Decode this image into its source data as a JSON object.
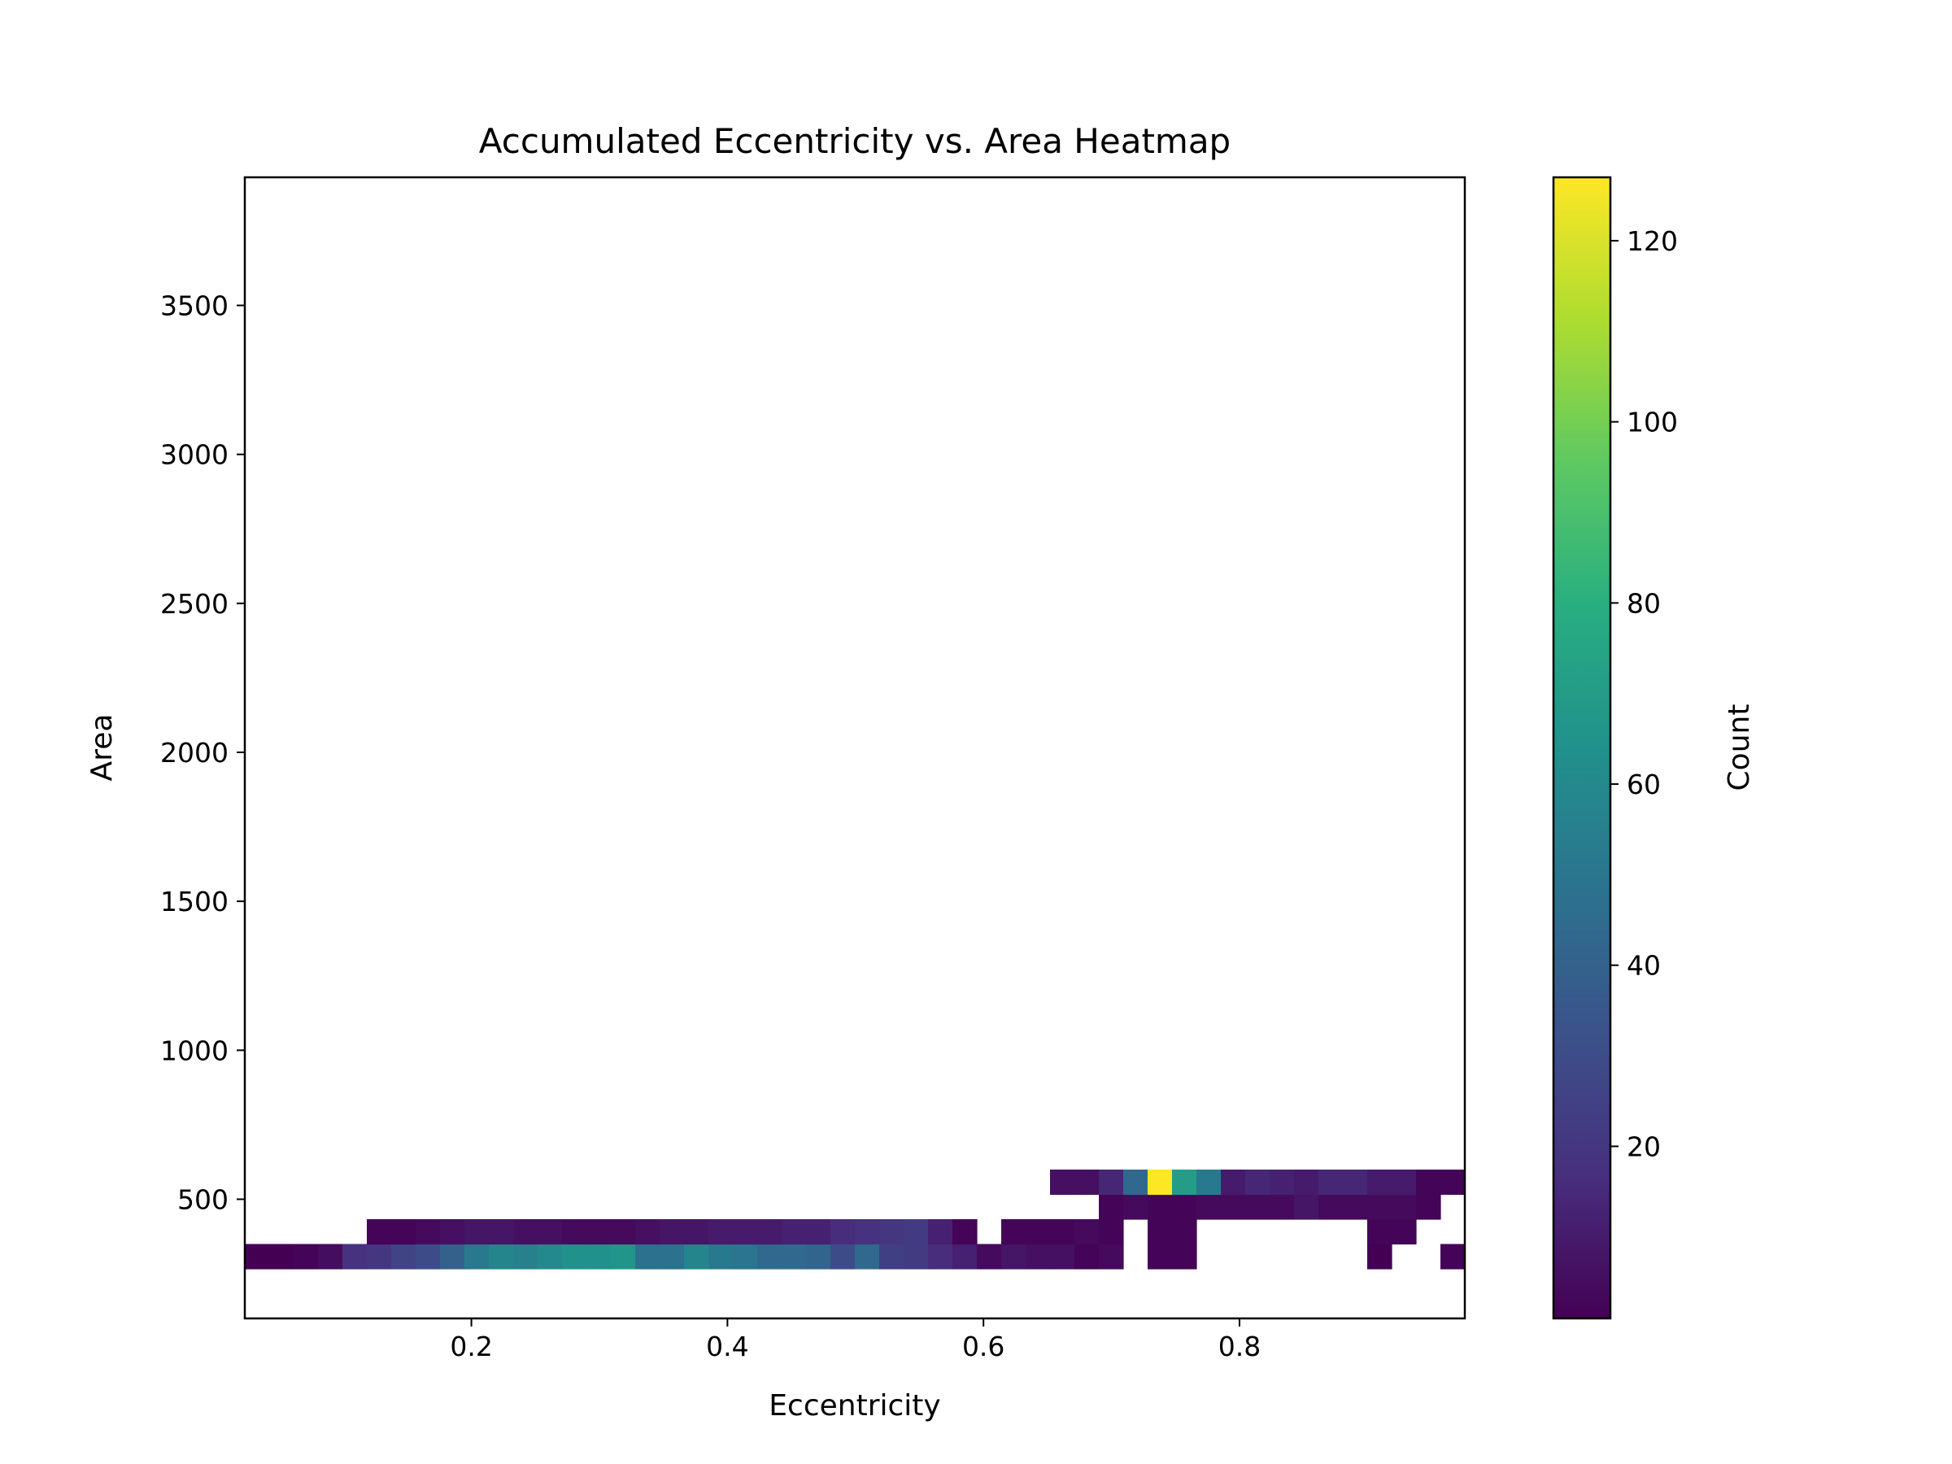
{
  "chart_data": {
    "type": "heatmap",
    "title": "Accumulated Eccentricity vs. Area Heatmap",
    "xlabel": "Eccentricity",
    "ylabel": "Area",
    "colorbar_label": "Count",
    "colormap": "viridis",
    "xlim": [
      0.023,
      0.976
    ],
    "ylim": [
      100,
      3930
    ],
    "x_bins": 50,
    "y_bins": 46,
    "clim": [
      1,
      127
    ],
    "x_ticks": [
      "0.2",
      "0.4",
      "0.6",
      "0.8"
    ],
    "y_ticks": [
      "500",
      "1000",
      "1500",
      "2000",
      "2500",
      "3000",
      "3500"
    ],
    "colorbar_ticks": [
      "20",
      "40",
      "60",
      "80",
      "100",
      "120"
    ],
    "grid": false,
    "cells": [
      {
        "col": 0,
        "row": 2,
        "v": 1
      },
      {
        "col": 1,
        "row": 2,
        "v": 1
      },
      {
        "col": 2,
        "row": 2,
        "v": 2
      },
      {
        "col": 3,
        "row": 2,
        "v": 5
      },
      {
        "col": 4,
        "row": 2,
        "v": 18
      },
      {
        "col": 5,
        "row": 2,
        "v": 20
      },
      {
        "col": 6,
        "row": 2,
        "v": 26
      },
      {
        "col": 7,
        "row": 2,
        "v": 30
      },
      {
        "col": 8,
        "row": 2,
        "v": 40
      },
      {
        "col": 9,
        "row": 2,
        "v": 52
      },
      {
        "col": 10,
        "row": 2,
        "v": 58
      },
      {
        "col": 11,
        "row": 2,
        "v": 56
      },
      {
        "col": 12,
        "row": 2,
        "v": 60
      },
      {
        "col": 13,
        "row": 2,
        "v": 64
      },
      {
        "col": 14,
        "row": 2,
        "v": 64
      },
      {
        "col": 15,
        "row": 2,
        "v": 66
      },
      {
        "col": 16,
        "row": 2,
        "v": 48
      },
      {
        "col": 17,
        "row": 2,
        "v": 48
      },
      {
        "col": 18,
        "row": 2,
        "v": 58
      },
      {
        "col": 19,
        "row": 2,
        "v": 52
      },
      {
        "col": 20,
        "row": 2,
        "v": 50
      },
      {
        "col": 21,
        "row": 2,
        "v": 44
      },
      {
        "col": 22,
        "row": 2,
        "v": 44
      },
      {
        "col": 23,
        "row": 2,
        "v": 42
      },
      {
        "col": 24,
        "row": 2,
        "v": 30
      },
      {
        "col": 25,
        "row": 2,
        "v": 44
      },
      {
        "col": 26,
        "row": 2,
        "v": 24
      },
      {
        "col": 27,
        "row": 2,
        "v": 22
      },
      {
        "col": 28,
        "row": 2,
        "v": 16
      },
      {
        "col": 29,
        "row": 2,
        "v": 12
      },
      {
        "col": 30,
        "row": 2,
        "v": 4
      },
      {
        "col": 31,
        "row": 2,
        "v": 8
      },
      {
        "col": 32,
        "row": 2,
        "v": 6
      },
      {
        "col": 33,
        "row": 2,
        "v": 6
      },
      {
        "col": 34,
        "row": 2,
        "v": 2
      },
      {
        "col": 35,
        "row": 2,
        "v": 4
      },
      {
        "col": 37,
        "row": 2,
        "v": 2
      },
      {
        "col": 38,
        "row": 2,
        "v": 2
      },
      {
        "col": 46,
        "row": 2,
        "v": 1
      },
      {
        "col": 49,
        "row": 2,
        "v": 2
      },
      {
        "col": 5,
        "row": 3,
        "v": 2
      },
      {
        "col": 6,
        "row": 3,
        "v": 2
      },
      {
        "col": 7,
        "row": 3,
        "v": 4
      },
      {
        "col": 8,
        "row": 3,
        "v": 6
      },
      {
        "col": 9,
        "row": 3,
        "v": 8
      },
      {
        "col": 10,
        "row": 3,
        "v": 8
      },
      {
        "col": 11,
        "row": 3,
        "v": 6
      },
      {
        "col": 12,
        "row": 3,
        "v": 6
      },
      {
        "col": 13,
        "row": 3,
        "v": 4
      },
      {
        "col": 14,
        "row": 3,
        "v": 4
      },
      {
        "col": 15,
        "row": 3,
        "v": 4
      },
      {
        "col": 16,
        "row": 3,
        "v": 6
      },
      {
        "col": 17,
        "row": 3,
        "v": 8
      },
      {
        "col": 18,
        "row": 3,
        "v": 8
      },
      {
        "col": 19,
        "row": 3,
        "v": 10
      },
      {
        "col": 20,
        "row": 3,
        "v": 10
      },
      {
        "col": 21,
        "row": 3,
        "v": 10
      },
      {
        "col": 22,
        "row": 3,
        "v": 12
      },
      {
        "col": 23,
        "row": 3,
        "v": 12
      },
      {
        "col": 24,
        "row": 3,
        "v": 16
      },
      {
        "col": 25,
        "row": 3,
        "v": 18
      },
      {
        "col": 26,
        "row": 3,
        "v": 20
      },
      {
        "col": 27,
        "row": 3,
        "v": 22
      },
      {
        "col": 28,
        "row": 3,
        "v": 12
      },
      {
        "col": 29,
        "row": 3,
        "v": 2
      },
      {
        "col": 31,
        "row": 3,
        "v": 2
      },
      {
        "col": 32,
        "row": 3,
        "v": 2
      },
      {
        "col": 33,
        "row": 3,
        "v": 2
      },
      {
        "col": 34,
        "row": 3,
        "v": 4
      },
      {
        "col": 35,
        "row": 3,
        "v": 2
      },
      {
        "col": 37,
        "row": 3,
        "v": 2
      },
      {
        "col": 38,
        "row": 3,
        "v": 2
      },
      {
        "col": 46,
        "row": 3,
        "v": 2
      },
      {
        "col": 47,
        "row": 3,
        "v": 2
      },
      {
        "col": 35,
        "row": 4,
        "v": 2
      },
      {
        "col": 36,
        "row": 4,
        "v": 4
      },
      {
        "col": 37,
        "row": 4,
        "v": 2
      },
      {
        "col": 38,
        "row": 4,
        "v": 2
      },
      {
        "col": 39,
        "row": 4,
        "v": 4
      },
      {
        "col": 40,
        "row": 4,
        "v": 4
      },
      {
        "col": 41,
        "row": 4,
        "v": 4
      },
      {
        "col": 42,
        "row": 4,
        "v": 4
      },
      {
        "col": 43,
        "row": 4,
        "v": 8
      },
      {
        "col": 44,
        "row": 4,
        "v": 4
      },
      {
        "col": 45,
        "row": 4,
        "v": 4
      },
      {
        "col": 46,
        "row": 4,
        "v": 4
      },
      {
        "col": 47,
        "row": 4,
        "v": 4
      },
      {
        "col": 48,
        "row": 4,
        "v": 2
      },
      {
        "col": 33,
        "row": 5,
        "v": 6
      },
      {
        "col": 34,
        "row": 5,
        "v": 6
      },
      {
        "col": 35,
        "row": 5,
        "v": 14
      },
      {
        "col": 36,
        "row": 5,
        "v": 44
      },
      {
        "col": 37,
        "row": 5,
        "v": 127
      },
      {
        "col": 38,
        "row": 5,
        "v": 70
      },
      {
        "col": 39,
        "row": 5,
        "v": 52
      },
      {
        "col": 40,
        "row": 5,
        "v": 10
      },
      {
        "col": 41,
        "row": 5,
        "v": 14
      },
      {
        "col": 42,
        "row": 5,
        "v": 12
      },
      {
        "col": 43,
        "row": 5,
        "v": 10
      },
      {
        "col": 44,
        "row": 5,
        "v": 14
      },
      {
        "col": 45,
        "row": 5,
        "v": 14
      },
      {
        "col": 46,
        "row": 5,
        "v": 10
      },
      {
        "col": 47,
        "row": 5,
        "v": 10
      },
      {
        "col": 48,
        "row": 5,
        "v": 2
      },
      {
        "col": 49,
        "row": 5,
        "v": 2
      }
    ]
  },
  "colors": {
    "background": "#ffffff",
    "axes": "#000000"
  }
}
